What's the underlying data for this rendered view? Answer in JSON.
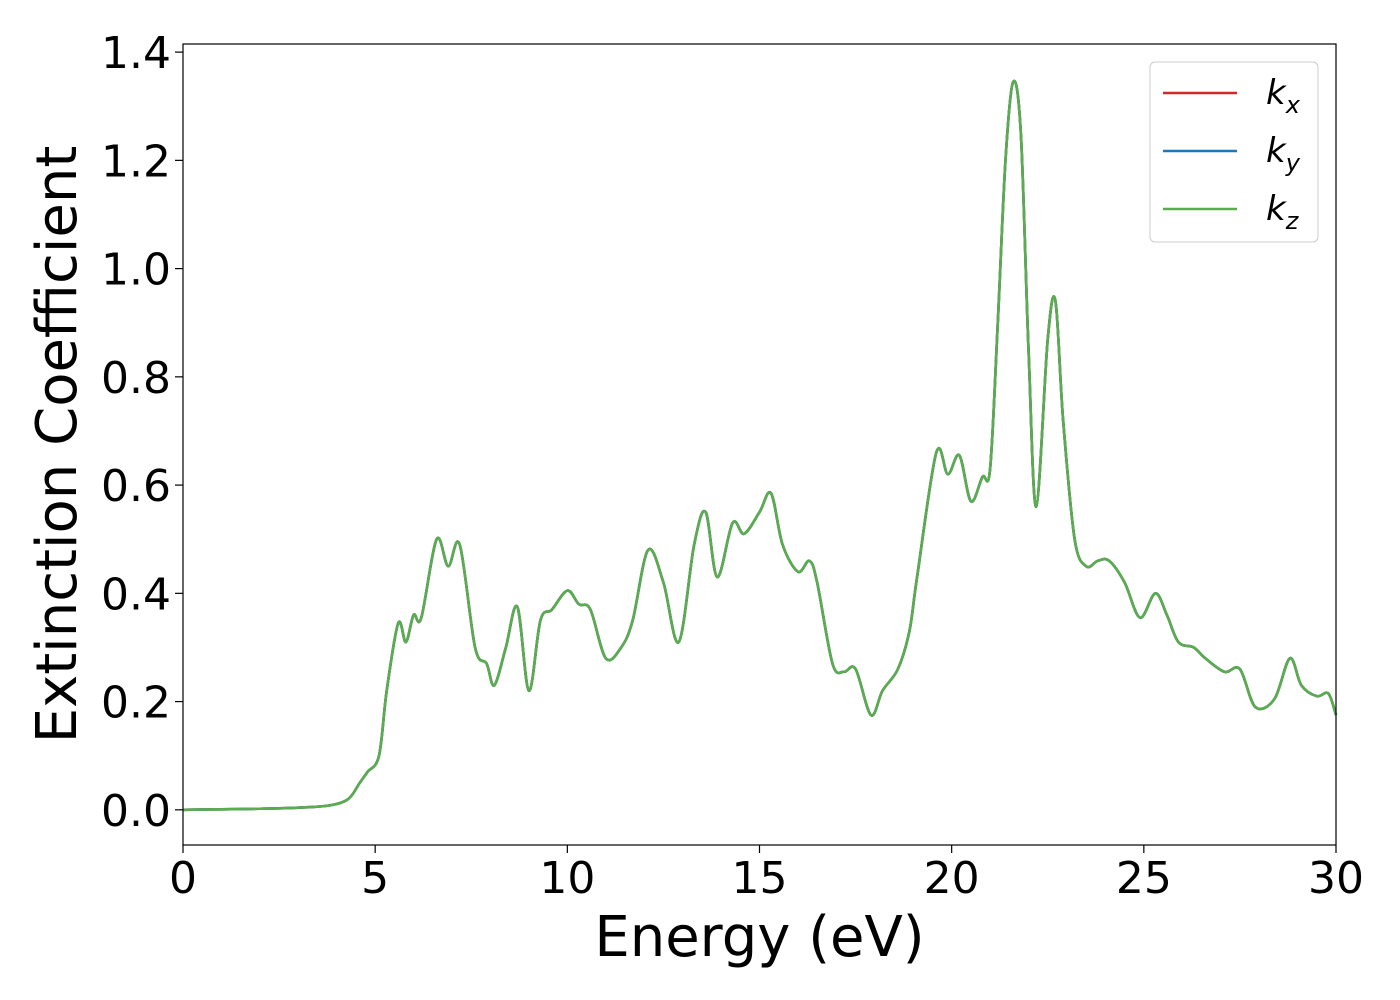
{
  "chart_data": {
    "type": "line",
    "xlabel": "Energy (eV)",
    "ylabel": "Extinction Coefficient",
    "xlim": [
      0,
      30
    ],
    "ylim": [
      -0.065,
      1.415
    ],
    "xticks": [
      0,
      5,
      10,
      15,
      20,
      25,
      30
    ],
    "yticks": [
      0.0,
      0.2,
      0.4,
      0.6,
      0.8,
      1.0,
      1.2,
      1.4
    ],
    "xtick_labels": [
      "0",
      "5",
      "10",
      "15",
      "20",
      "25",
      "30"
    ],
    "ytick_labels": [
      "0.0",
      "0.2",
      "0.4",
      "0.6",
      "0.8",
      "1.0",
      "1.2",
      "1.4"
    ],
    "grid": false,
    "legend": "top-right",
    "x": [
      0,
      1,
      2,
      3,
      3.8,
      4.3,
      4.6,
      4.8,
      5.1,
      5.3,
      5.6,
      5.8,
      6.0,
      6.2,
      6.6,
      6.9,
      7.2,
      7.6,
      7.9,
      8.1,
      8.4,
      8.7,
      9.0,
      9.3,
      9.6,
      10.0,
      10.3,
      10.6,
      11.0,
      11.4,
      11.7,
      12.1,
      12.5,
      12.9,
      13.3,
      13.6,
      13.9,
      14.3,
      14.6,
      15.0,
      15.3,
      15.6,
      16.0,
      16.3,
      16.5,
      16.9,
      17.2,
      17.5,
      17.9,
      18.2,
      18.6,
      18.9,
      19.1,
      19.6,
      19.9,
      20.2,
      20.5,
      20.8,
      21.0,
      21.2,
      21.4,
      21.6,
      21.8,
      22.0,
      22.2,
      22.5,
      22.7,
      22.9,
      23.2,
      23.5,
      23.8,
      24.1,
      24.5,
      24.9,
      25.3,
      25.6,
      25.9,
      26.3,
      26.6,
      27.1,
      27.5,
      27.9,
      28.4,
      28.8,
      29.1,
      29.5,
      29.8,
      30
    ],
    "series": [
      {
        "name": "k_x",
        "color": "#d62728",
        "y": [
          0,
          0.001,
          0.002,
          0.004,
          0.008,
          0.02,
          0.05,
          0.07,
          0.1,
          0.22,
          0.345,
          0.31,
          0.36,
          0.355,
          0.5,
          0.45,
          0.49,
          0.3,
          0.27,
          0.23,
          0.3,
          0.375,
          0.22,
          0.35,
          0.37,
          0.405,
          0.38,
          0.37,
          0.28,
          0.3,
          0.35,
          0.48,
          0.42,
          0.31,
          0.49,
          0.55,
          0.43,
          0.53,
          0.51,
          0.55,
          0.585,
          0.49,
          0.44,
          0.46,
          0.42,
          0.27,
          0.255,
          0.26,
          0.175,
          0.22,
          0.26,
          0.33,
          0.43,
          0.66,
          0.62,
          0.655,
          0.57,
          0.615,
          0.63,
          0.9,
          1.2,
          1.345,
          1.25,
          0.85,
          0.56,
          0.87,
          0.94,
          0.72,
          0.5,
          0.45,
          0.46,
          0.46,
          0.42,
          0.355,
          0.4,
          0.36,
          0.31,
          0.3,
          0.28,
          0.255,
          0.26,
          0.19,
          0.205,
          0.28,
          0.23,
          0.21,
          0.215,
          0.175
        ]
      },
      {
        "name": "k_y",
        "color": "#1f77b4",
        "y": [
          0,
          0.001,
          0.002,
          0.004,
          0.008,
          0.02,
          0.05,
          0.07,
          0.1,
          0.22,
          0.345,
          0.31,
          0.36,
          0.355,
          0.5,
          0.45,
          0.49,
          0.3,
          0.27,
          0.23,
          0.3,
          0.375,
          0.22,
          0.35,
          0.37,
          0.405,
          0.38,
          0.37,
          0.28,
          0.3,
          0.35,
          0.48,
          0.42,
          0.31,
          0.49,
          0.55,
          0.43,
          0.53,
          0.51,
          0.55,
          0.585,
          0.49,
          0.44,
          0.46,
          0.42,
          0.27,
          0.255,
          0.26,
          0.175,
          0.22,
          0.26,
          0.33,
          0.43,
          0.66,
          0.62,
          0.655,
          0.57,
          0.615,
          0.63,
          0.9,
          1.2,
          1.345,
          1.25,
          0.85,
          0.56,
          0.87,
          0.94,
          0.72,
          0.5,
          0.45,
          0.46,
          0.46,
          0.42,
          0.355,
          0.4,
          0.36,
          0.31,
          0.3,
          0.28,
          0.255,
          0.26,
          0.19,
          0.205,
          0.28,
          0.23,
          0.21,
          0.215,
          0.175
        ]
      },
      {
        "name": "k_z",
        "color": "#5aad4e",
        "y": [
          0,
          0.001,
          0.002,
          0.004,
          0.008,
          0.02,
          0.05,
          0.07,
          0.1,
          0.22,
          0.345,
          0.31,
          0.36,
          0.355,
          0.5,
          0.45,
          0.49,
          0.3,
          0.27,
          0.23,
          0.3,
          0.375,
          0.22,
          0.35,
          0.37,
          0.405,
          0.38,
          0.37,
          0.28,
          0.3,
          0.35,
          0.48,
          0.42,
          0.31,
          0.49,
          0.55,
          0.43,
          0.53,
          0.51,
          0.55,
          0.585,
          0.49,
          0.44,
          0.46,
          0.42,
          0.27,
          0.255,
          0.26,
          0.175,
          0.22,
          0.26,
          0.33,
          0.43,
          0.66,
          0.62,
          0.655,
          0.57,
          0.615,
          0.63,
          0.9,
          1.2,
          1.345,
          1.25,
          0.85,
          0.56,
          0.87,
          0.94,
          0.72,
          0.5,
          0.45,
          0.46,
          0.46,
          0.42,
          0.355,
          0.4,
          0.36,
          0.31,
          0.3,
          0.28,
          0.255,
          0.26,
          0.19,
          0.205,
          0.28,
          0.23,
          0.21,
          0.215,
          0.175
        ]
      }
    ],
    "legend_entries": [
      {
        "base": "k",
        "sub": "x",
        "color": "#d62728"
      },
      {
        "base": "k",
        "sub": "y",
        "color": "#1f77b4"
      },
      {
        "base": "k",
        "sub": "z",
        "color": "#5aad4e"
      }
    ]
  }
}
